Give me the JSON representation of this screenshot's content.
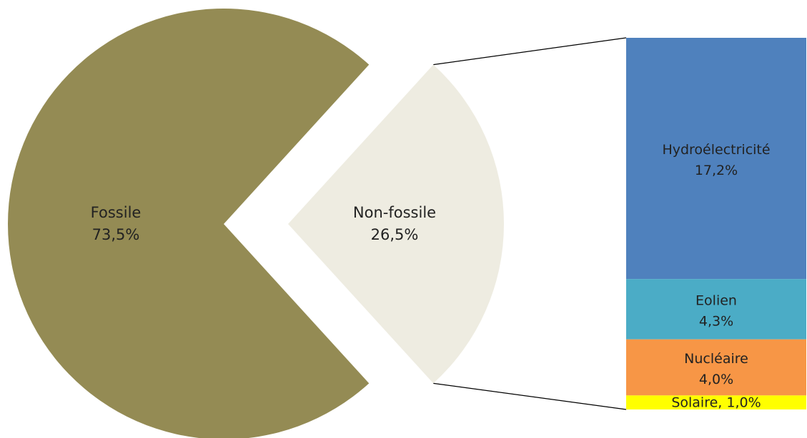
{
  "chart_data": {
    "type": "bar-of-pie",
    "pie": {
      "slices": [
        {
          "name": "Fossile",
          "value": 73.5,
          "value_label": "73,5%",
          "color": "#948b54"
        },
        {
          "name": "Non-fossile",
          "value": 26.5,
          "value_label": "26,5%",
          "color": "#eeece1"
        }
      ]
    },
    "bar": {
      "segments": [
        {
          "name": "Hydroélectricité",
          "value": 17.2,
          "value_label": "17,2%",
          "color": "#4f81bd"
        },
        {
          "name": "Eolien",
          "value": 4.3,
          "value_label": "4,3%",
          "color": "#4bacc6"
        },
        {
          "name": "Nucléaire",
          "value": 4.0,
          "value_label": "4,0%",
          "color": "#f79646"
        },
        {
          "name": "Solaire",
          "value": 1.0,
          "value_label": "Solaire, 1,0%",
          "color": "#ffff00"
        }
      ]
    },
    "title": "",
    "legend": "none"
  }
}
